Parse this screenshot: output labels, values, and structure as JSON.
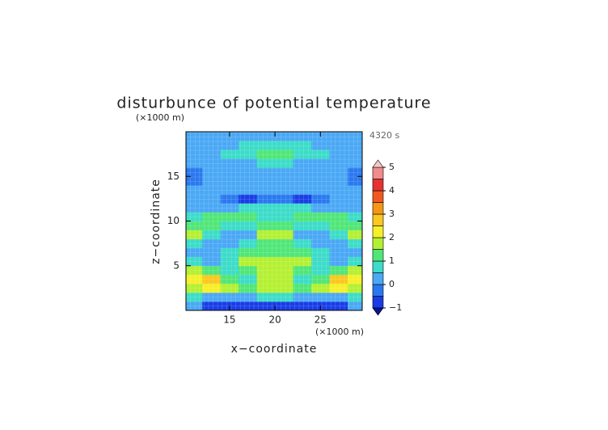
{
  "chart_data": {
    "type": "contour",
    "title": "disturbunce of potential temperature",
    "y_unit": "(×1000 m)",
    "x_unit": "(×1000 m)",
    "time_label": "4320 s",
    "xlabel": "x−coordinate",
    "ylabel": "z−coordinate",
    "xlim": [
      10.2,
      29.6
    ],
    "ylim": [
      0,
      20
    ],
    "xticks": [
      15,
      20,
      25
    ],
    "yticks": [
      5,
      10,
      15
    ],
    "x": [
      11,
      13,
      15,
      17,
      19,
      21,
      23,
      25,
      27,
      29
    ],
    "y": [
      0.5,
      1.5,
      2.5,
      3.5,
      4.5,
      5.5,
      6.5,
      7.5,
      8.5,
      9.5,
      10.5,
      11.5,
      12.5,
      13.5,
      14.5,
      15.5,
      16.5,
      17.5,
      18.5,
      19.5
    ],
    "z": [
      [
        0.2,
        -0.6,
        -0.7,
        -0.8,
        -0.8,
        -0.8,
        -0.8,
        -0.7,
        -0.6,
        0.2
      ],
      [
        0.7,
        0.3,
        0.2,
        0.4,
        0.5,
        0.5,
        0.4,
        0.2,
        0.3,
        0.7
      ],
      [
        1.8,
        2.2,
        1.6,
        1.2,
        1.7,
        1.7,
        1.2,
        1.6,
        2.2,
        1.8
      ],
      [
        2.3,
        2.6,
        1.2,
        0.9,
        1.8,
        1.8,
        0.9,
        1.2,
        2.6,
        2.3
      ],
      [
        1.6,
        1.2,
        0.8,
        1.4,
        1.7,
        1.7,
        1.4,
        0.8,
        1.2,
        1.6
      ],
      [
        0.6,
        0.4,
        0.9,
        1.6,
        1.5,
        1.5,
        1.6,
        0.9,
        0.4,
        0.6
      ],
      [
        0.2,
        0.1,
        0.6,
        1.0,
        1.2,
        1.2,
        1.0,
        0.6,
        0.1,
        0.2
      ],
      [
        0.8,
        0.2,
        0.1,
        0.6,
        1.2,
        1.2,
        0.6,
        0.1,
        0.2,
        0.8
      ],
      [
        1.6,
        0.7,
        0.3,
        0.3,
        1.6,
        1.6,
        0.3,
        0.3,
        0.7,
        1.6
      ],
      [
        1.2,
        1.1,
        0.8,
        0.6,
        1.0,
        1.0,
        0.6,
        0.8,
        1.1,
        1.2
      ],
      [
        0.5,
        1.0,
        1.2,
        1.3,
        0.9,
        0.9,
        1.3,
        1.2,
        1.0,
        0.5
      ],
      [
        0.2,
        0.3,
        0.4,
        0.6,
        0.6,
        0.6,
        0.6,
        0.4,
        0.3,
        0.2
      ],
      [
        0.1,
        0.0,
        -0.2,
        -0.6,
        -0.2,
        -0.2,
        -0.6,
        -0.2,
        0.0,
        0.1
      ],
      [
        0.1,
        0.1,
        0.0,
        0.0,
        0.1,
        0.1,
        0.0,
        0.0,
        0.1,
        0.1
      ],
      [
        -0.1,
        0.0,
        0.1,
        0.1,
        0.1,
        0.1,
        0.1,
        0.1,
        0.0,
        -0.1
      ],
      [
        -0.1,
        0.0,
        0.1,
        0.2,
        0.2,
        0.2,
        0.2,
        0.1,
        0.0,
        -0.1
      ],
      [
        0.0,
        0.1,
        0.3,
        0.4,
        0.5,
        0.5,
        0.4,
        0.3,
        0.1,
        0.0
      ],
      [
        0.1,
        0.2,
        0.6,
        0.9,
        1.1,
        1.1,
        0.9,
        0.6,
        0.2,
        0.1
      ],
      [
        0.1,
        0.2,
        0.4,
        0.5,
        0.6,
        0.6,
        0.5,
        0.4,
        0.2,
        0.1
      ],
      [
        0.0,
        0.1,
        0.1,
        0.1,
        0.2,
        0.2,
        0.1,
        0.1,
        0.1,
        0.0
      ]
    ],
    "levels": [
      -1,
      -0.5,
      0,
      0.5,
      1,
      1.5,
      2,
      2.5,
      3,
      3.5,
      4,
      4.5,
      5
    ],
    "colors": [
      "#1a3ce6",
      "#2a78f0",
      "#4aa8f5",
      "#3cdcc8",
      "#50e678",
      "#b4f032",
      "#f5f028",
      "#fac81e",
      "#f59614",
      "#f05a1e",
      "#e63232",
      "#f08c8c"
    ],
    "extend_colors": [
      "#0a148c",
      "#f5c8c8"
    ],
    "cbar_ticks": [
      {
        "value": -1,
        "label": "−1"
      },
      0,
      1,
      2,
      3,
      4,
      5
    ]
  }
}
